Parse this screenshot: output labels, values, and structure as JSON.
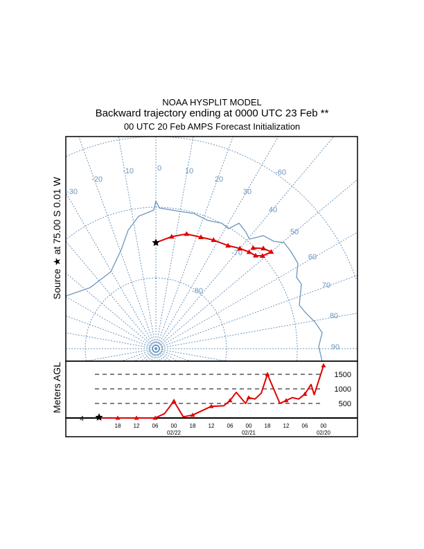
{
  "header": {
    "model": "NOAA HYSPLIT MODEL",
    "title": "Backward trajectory ending at 0000 UTC 23 Feb **",
    "subtitle": "00 UTC 20 Feb    AMPS  Forecast Initialization"
  },
  "source_label": "Source ★ at   75.00 S    0.01 W",
  "colors": {
    "map": "#6a94bc",
    "trajectory": "#e00000",
    "frame": "#000000"
  },
  "chart_data": [
    {
      "type": "map-trajectory",
      "projection": "south polar stereographic",
      "source": {
        "lat": -75.0,
        "lon": -0.01
      },
      "lat_circles": [
        -80,
        -70,
        -60
      ],
      "lat_labels": [
        "-80",
        "-70",
        "-60"
      ],
      "lon_labels": [
        "-30",
        "-20",
        "-10",
        "0",
        "10",
        "20",
        "30",
        "40",
        "50",
        "60",
        "70",
        "80",
        "90"
      ],
      "trajectory": [
        {
          "hours_back": 0,
          "lat": -75.0,
          "lon": 0
        },
        {
          "hours_back": 6,
          "lat": -74.0,
          "lon": 8
        },
        {
          "hours_back": 12,
          "lat": -73.2,
          "lon": 15
        },
        {
          "hours_back": 18,
          "lat": -73.0,
          "lon": 22
        },
        {
          "hours_back": 24,
          "lat": -72.6,
          "lon": 28
        },
        {
          "hours_back": 30,
          "lat": -72.2,
          "lon": 35
        },
        {
          "hours_back": 36,
          "lat": -71.5,
          "lon": 40
        },
        {
          "hours_back": 42,
          "lat": -71.0,
          "lon": 44
        },
        {
          "hours_back": 48,
          "lat": -70.7,
          "lon": 47
        },
        {
          "hours_back": 54,
          "lat": -70.0,
          "lon": 49
        },
        {
          "hours_back": 60,
          "lat": -68.7,
          "lon": 50
        },
        {
          "hours_back": 66,
          "lat": -69.2,
          "lon": 47
        },
        {
          "hours_back": 72,
          "lat": -70.2,
          "lon": 44
        }
      ]
    },
    {
      "type": "line",
      "ylabel": "Meters AGL",
      "source_height_label": "4",
      "ylim": [
        0,
        1900
      ],
      "grid_values": [
        500,
        1000,
        1500
      ],
      "grid_labels": [
        "500",
        "1000",
        "1500"
      ],
      "x_ticks": [
        "18",
        "12",
        "06",
        "00",
        "18",
        "12",
        "06",
        "00",
        "18",
        "12",
        "06",
        "00"
      ],
      "date_labels": [
        {
          "after_tick": 3,
          "text": "02/22"
        },
        {
          "after_tick": 7,
          "text": "02/21"
        },
        {
          "after_tick": 11,
          "text": "02/20"
        }
      ],
      "hours_back": [
        0,
        6,
        12,
        18,
        21,
        24,
        27,
        30,
        36,
        40,
        42,
        44,
        47,
        48,
        50,
        52,
        54,
        58,
        60,
        62,
        64,
        66,
        68,
        69,
        72
      ],
      "height_m": [
        4,
        0,
        0,
        0,
        150,
        580,
        40,
        100,
        400,
        420,
        600,
        880,
        500,
        700,
        650,
        850,
        1500,
        500,
        600,
        700,
        650,
        820,
        1150,
        800,
        1800
      ],
      "marker_hours": [
        6,
        12,
        18,
        24,
        30,
        36,
        42,
        48,
        54,
        60,
        66,
        72
      ]
    }
  ]
}
